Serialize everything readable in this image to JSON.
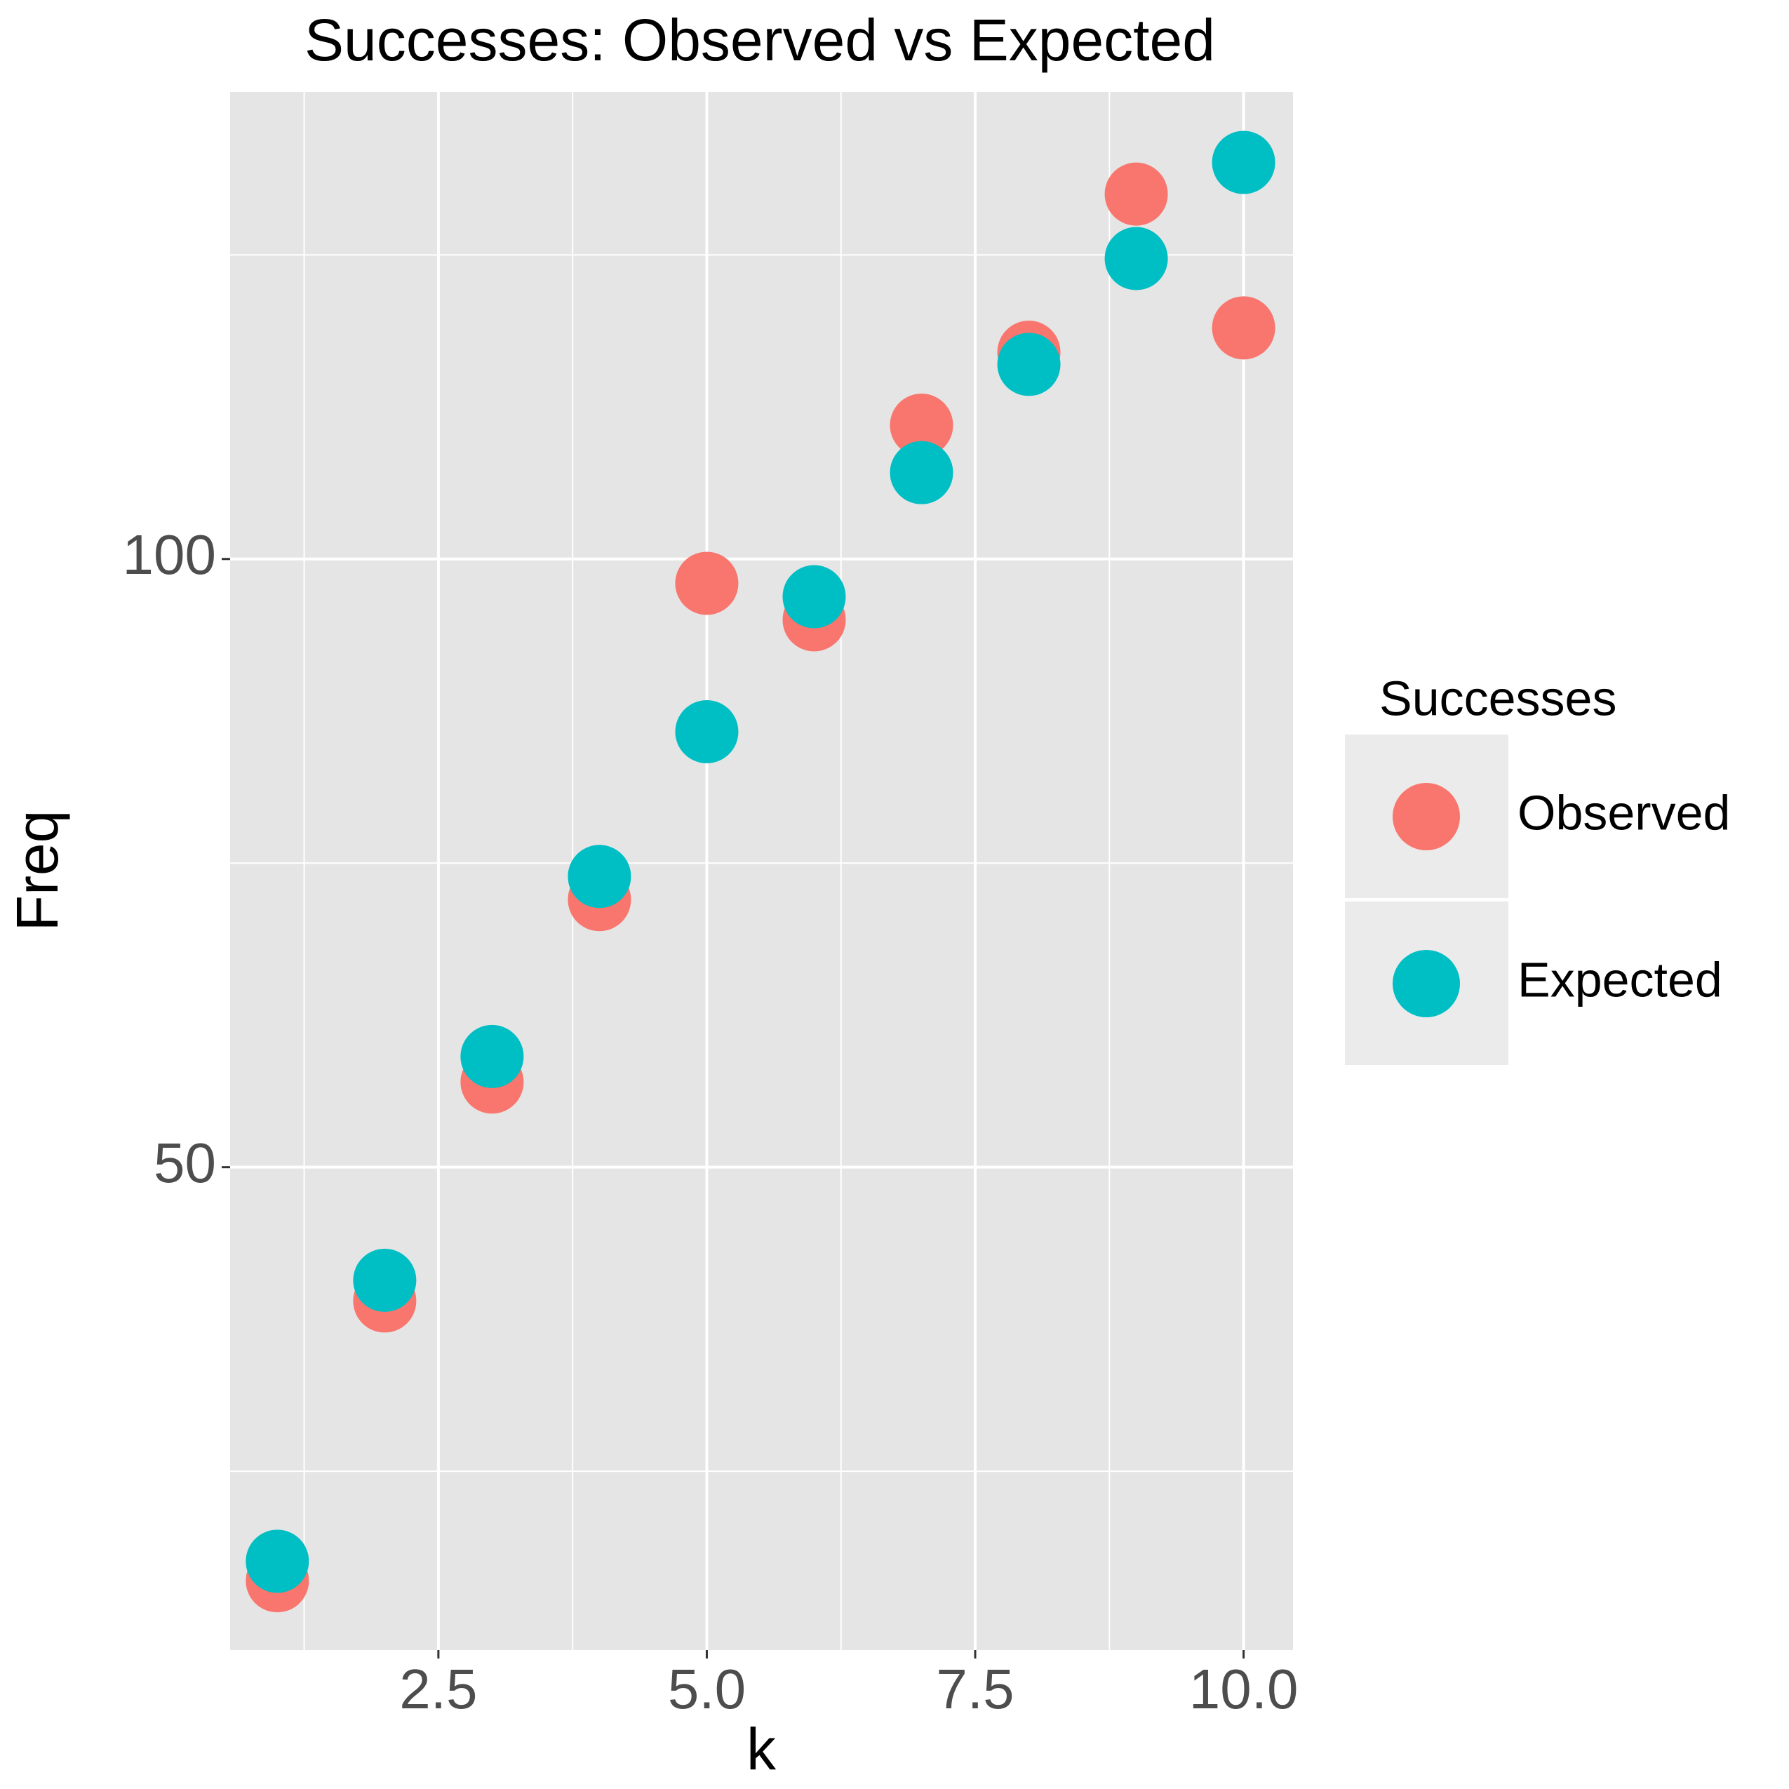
{
  "chart_data": {
    "type": "scatter",
    "title": "Successes: Observed vs Expected",
    "x_label": "k",
    "y_label": "Freq",
    "x": [
      1,
      2,
      3,
      4,
      5,
      6,
      7,
      8,
      9,
      10
    ],
    "series": [
      {
        "name": "Observed",
        "color": "#f8766d",
        "values": [
          16,
          39,
          57,
          72,
          98,
          95,
          111,
          117,
          130,
          119
        ]
      },
      {
        "name": "Expected",
        "color": "#00bfc4",
        "values": [
          17.6,
          40.7,
          59.1,
          73.9,
          85.8,
          96.9,
          107.1,
          116,
          124.7,
          132.6
        ]
      }
    ],
    "legend_title": "Successes",
    "xlim": [
      0.56,
      10.46
    ],
    "ylim": [
      10.3,
      138.4
    ],
    "xticks": [
      2.5,
      {
        "value": 5,
        "label": "5.0"
      },
      7.5,
      {
        "value": 10,
        "label": "10.0"
      }
    ],
    "yticks": [
      50,
      100
    ],
    "x_minor_grid": [
      1.25,
      3.75,
      6.25,
      8.75
    ],
    "y_minor_grid": [
      25,
      75,
      125
    ],
    "grid": true,
    "legend_position": "right"
  }
}
